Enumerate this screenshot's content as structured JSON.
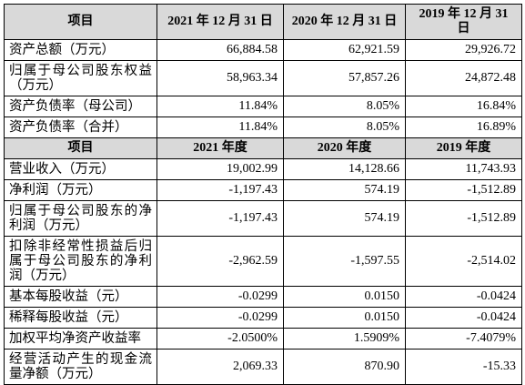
{
  "sections": [
    {
      "header": [
        "项目",
        "2021 年 12 月 31 日",
        "2020 年 12 月 31 日",
        "2019 年 12 月 31 日"
      ],
      "rows": [
        [
          "资产总额（万元）",
          "66,884.58",
          "62,921.59",
          "29,926.72"
        ],
        [
          "归属于母公司股东权益（万元）",
          "58,963.34",
          "57,857.26",
          "24,872.48"
        ],
        [
          "资产负债率（母公司）",
          "11.84%",
          "8.05%",
          "16.84%"
        ],
        [
          "资产负债率（合并）",
          "11.84%",
          "8.05%",
          "16.89%"
        ]
      ]
    },
    {
      "header": [
        "项目",
        "2021 年度",
        "2020 年度",
        "2019 年度"
      ],
      "rows": [
        [
          "营业收入（万元）",
          "19,002.99",
          "14,128.66",
          "11,743.93"
        ],
        [
          "净利润（万元）",
          "-1,197.43",
          "574.19",
          "-1,512.89"
        ],
        [
          "归属于母公司股东的净利润（万元）",
          "-1,197.43",
          "574.19",
          "-1,512.89"
        ],
        [
          "扣除非经常性损益后归属于母公司股东的净利润（万元）",
          "-2,962.59",
          "-1,597.55",
          "-2,514.02"
        ],
        [
          "基本每股收益（元）",
          "-0.0299",
          "0.0150",
          "-0.0424"
        ],
        [
          "稀释每股收益（元）",
          "-0.0299",
          "0.0150",
          "-0.0424"
        ],
        [
          "加权平均净资产收益率",
          "-2.0500%",
          "1.5909%",
          "-7.4079%"
        ],
        [
          "经营活动产生的现金流量净额（万元）",
          "2,069.33",
          "870.90",
          "-15.33"
        ]
      ]
    }
  ]
}
